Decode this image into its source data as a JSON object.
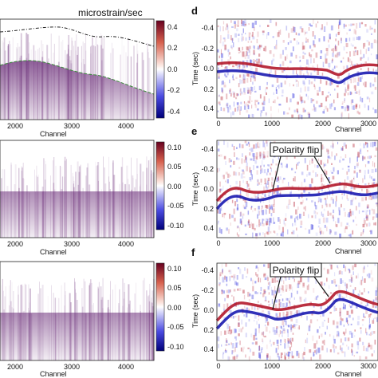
{
  "left_panels": {
    "units_label": "microstrain/sec",
    "xlabel": "Channel",
    "xticks": [
      "2000",
      "3000",
      "4000"
    ],
    "colorbar_top_ticks": [
      "0.4",
      "0.2",
      "0.0",
      "-0.2",
      "-0.4"
    ],
    "colorbar_bottom_ticks": [
      "0.10",
      "0.05",
      "0.00",
      "-0.05",
      "-0.10"
    ],
    "colors": {
      "positive": "#b2182b",
      "negative": "#2a2adb",
      "wave": "#6a2c78"
    }
  },
  "right_panels": [
    {
      "label": "d",
      "ylabel": "Time (sec)",
      "xlabel": "Channel",
      "xticks": [
        "0",
        "1000",
        "2000",
        "3000"
      ],
      "yticks": [
        "-0.4",
        "-0.2",
        "0.0",
        "0.2",
        "0.4"
      ]
    },
    {
      "label": "e",
      "ylabel": "Time (sec)",
      "xlabel": "Channel",
      "xticks": [
        "0",
        "1000",
        "2000",
        "3000"
      ],
      "yticks": [
        "-0.4",
        "-0.2",
        "0.0",
        "0.2",
        "0.4"
      ],
      "annotation": "Polarity flip"
    },
    {
      "label": "f",
      "ylabel": "Time (sec)",
      "xlabel": "Channel",
      "xticks": [
        "0",
        "1000",
        "2000",
        "3000"
      ],
      "yticks": [
        "-0.4",
        "-0.2",
        "0.0",
        "0.2",
        "0.4"
      ],
      "annotation": "Polarity flip"
    }
  ]
}
